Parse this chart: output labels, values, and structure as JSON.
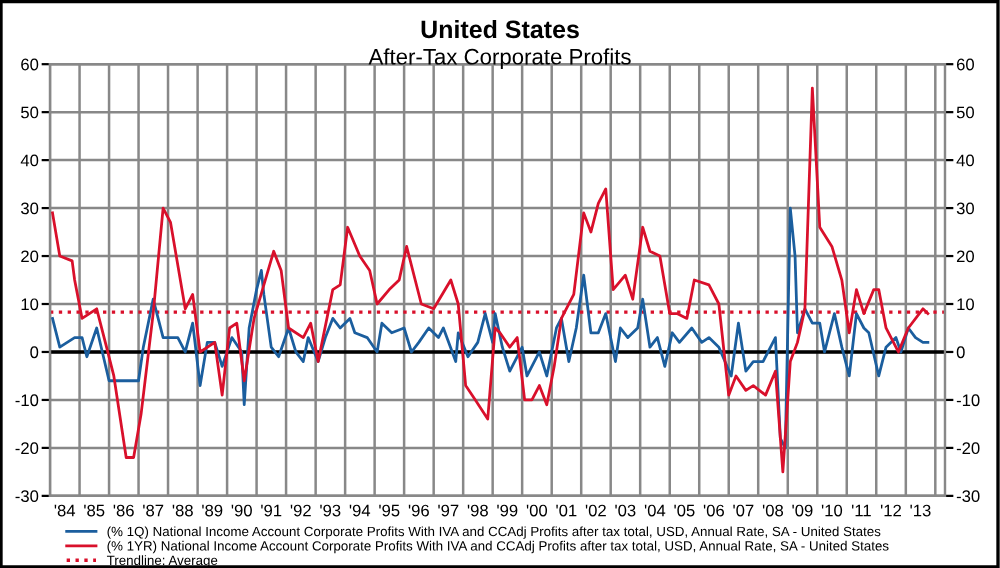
{
  "chart_data": {
    "type": "line",
    "title": "United States",
    "subtitle": "After-Tax Corporate Profits",
    "series": [
      {
        "name": "(% 1Q) National Income Account Corporate Profits With IVA and CCAdj Profits after tax total, USD, Annual Rate, SA - United States",
        "color": "#1b5e9e",
        "x": [
          "1984-02",
          "1984-05",
          "1984-11",
          "1985-02",
          "1985-04",
          "1985-08",
          "1986-01",
          "1986-03",
          "1986-10",
          "1987-01",
          "1987-03",
          "1987-07",
          "1987-11",
          "1988-05",
          "1988-08",
          "1988-11",
          "1989-02",
          "1989-05",
          "1989-08",
          "1989-11",
          "1990-03",
          "1990-07",
          "1990-08",
          "1990-10",
          "1991-01",
          "1991-03",
          "1991-04",
          "1991-07",
          "1991-10",
          "1992-02",
          "1992-05",
          "1992-08",
          "1992-10",
          "1993-02",
          "1993-05",
          "1993-08",
          "1993-11",
          "1994-03",
          "1994-05",
          "1994-10",
          "1995-02",
          "1995-04",
          "1995-08",
          "1996-01",
          "1996-04",
          "1996-07",
          "1996-11",
          "1997-03",
          "1997-05",
          "1997-10",
          "1997-11",
          "1998-03",
          "1998-07",
          "1998-10",
          "1999-01",
          "1999-02",
          "1999-05",
          "1999-08",
          "2000-01",
          "2000-03",
          "2000-08",
          "2000-11",
          "2001-03",
          "2001-05",
          "2001-08",
          "2001-11",
          "2002-02",
          "2002-05",
          "2002-08",
          "2002-11",
          "2003-03",
          "2003-05",
          "2003-08",
          "2003-12",
          "2004-02",
          "2004-05",
          "2004-08",
          "2004-11",
          "2005-02",
          "2005-05",
          "2005-10",
          "2006-02",
          "2006-05",
          "2006-09",
          "2007-02",
          "2007-05",
          "2007-08",
          "2007-11",
          "2008-03",
          "2008-08",
          "2008-10",
          "2008-12",
          "2009-02",
          "2009-04",
          "2009-05",
          "2009-08",
          "2009-11",
          "2010-02",
          "2010-04",
          "2010-08",
          "2010-11",
          "2011-02",
          "2011-05",
          "2011-08",
          "2011-10",
          "2012-02",
          "2012-05",
          "2012-09",
          "2012-11",
          "2013-02",
          "2013-05",
          "2013-08",
          "2013-10"
        ],
        "values": [
          7,
          1,
          3,
          3,
          -1,
          5,
          -6,
          -6,
          -6,
          -6,
          1,
          11,
          3,
          3,
          0,
          6,
          -7,
          2,
          2,
          -3,
          3,
          0,
          -11,
          5,
          13,
          17,
          12,
          1,
          -1,
          5,
          0,
          -2,
          3,
          -2,
          3,
          7,
          5,
          7,
          4,
          3,
          0,
          6,
          4,
          5,
          0,
          2,
          5,
          3,
          5,
          -2,
          4,
          -1,
          2,
          8,
          2,
          8,
          1,
          -4,
          1,
          -5,
          0,
          -5,
          5,
          7,
          -2,
          5,
          16,
          4,
          4,
          8,
          -2,
          5,
          3,
          5,
          11,
          1,
          3,
          -3,
          4,
          2,
          5,
          2,
          3,
          1,
          -5,
          6,
          -4,
          -2,
          -2,
          3,
          -18,
          -20,
          30,
          20,
          4,
          9,
          6,
          6,
          0,
          8,
          1,
          -5,
          8,
          5,
          4,
          -5,
          1,
          3,
          0,
          5,
          3,
          2,
          2
        ]
      },
      {
        "name": "(% 1YR) National Income Account Corporate Profits With IVA and CCAdj Profits after tax total, USD, Annual Rate, SA - United States",
        "color": "#d9102b",
        "x": [
          "1984-02",
          "1984-05",
          "1984-10",
          "1984-11",
          "1985-02",
          "1985-08",
          "1985-12",
          "1986-03",
          "1986-08",
          "1986-11",
          "1987-02",
          "1987-07",
          "1987-11",
          "1988-02",
          "1988-08",
          "1988-11",
          "1989-02",
          "1989-08",
          "1989-11",
          "1990-02",
          "1990-05",
          "1990-08",
          "1990-12",
          "1991-08",
          "1991-11",
          "1992-02",
          "1992-08",
          "1992-11",
          "1993-02",
          "1993-08",
          "1993-11",
          "1994-02",
          "1994-07",
          "1994-11",
          "1995-02",
          "1995-07",
          "1995-11",
          "1996-02",
          "1996-08",
          "1997-01",
          "1997-08",
          "1997-11",
          "1998-02",
          "1998-06",
          "1998-11",
          "1999-02",
          "1999-04",
          "1999-08",
          "1999-11",
          "2000-02",
          "2000-05",
          "2000-08",
          "2000-11",
          "2001-02",
          "2001-05",
          "2001-10",
          "2002-02",
          "2002-05",
          "2002-08",
          "2002-11",
          "2003-02",
          "2003-07",
          "2003-10",
          "2004-02",
          "2004-05",
          "2004-09",
          "2005-01",
          "2005-04",
          "2005-08",
          "2005-11",
          "2006-05",
          "2006-09",
          "2007-01",
          "2007-04",
          "2007-08",
          "2007-11",
          "2008-04",
          "2008-08",
          "2008-11",
          "2009-02",
          "2009-05",
          "2009-08",
          "2009-11",
          "2010-02",
          "2010-07",
          "2010-11",
          "2011-02",
          "2011-05",
          "2011-08",
          "2011-12",
          "2012-02",
          "2012-05",
          "2012-10",
          "2013-02",
          "2013-08",
          "2013-10"
        ],
        "values": [
          29,
          20,
          19,
          15,
          7,
          9,
          1,
          -5,
          -22,
          -22,
          -13,
          8,
          30,
          27,
          9,
          12,
          0,
          2,
          -9,
          5,
          6,
          -6,
          7,
          21,
          17,
          5,
          3,
          6,
          -2,
          13,
          14,
          26,
          20,
          17,
          10,
          13,
          15,
          22,
          10,
          9,
          15,
          10,
          -7,
          -10,
          -14,
          5,
          4,
          1,
          3,
          -10,
          -10,
          -7,
          -11,
          -3,
          7,
          12,
          29,
          25,
          31,
          34,
          13,
          16,
          11,
          26,
          21,
          20,
          8,
          8,
          7,
          15,
          14,
          10,
          -9,
          -5,
          -8,
          -7,
          -9,
          -4,
          -25,
          -2,
          2,
          9,
          55,
          26,
          22,
          15,
          4,
          13,
          8,
          13,
          13,
          5,
          0,
          5,
          9,
          8
        ]
      }
    ],
    "ref_lines": [
      {
        "axis": "y",
        "value": 0,
        "color": "#000000",
        "line_style": "solid"
      },
      {
        "axis": "y",
        "value": 8.3,
        "label": "Trendline: Average",
        "color": "#d9102b",
        "line_style": "dotted"
      }
    ],
    "xlim": [
      "1984-01",
      "2014-05"
    ],
    "xticks": [
      {
        "value": "1984",
        "label": null
      },
      {
        "value": "1985",
        "label": null
      },
      {
        "value": "1986",
        "label": null
      },
      {
        "value": "1987",
        "label": null
      },
      {
        "value": "1988",
        "label": null
      },
      {
        "value": "1989",
        "label": null
      },
      {
        "value": "1990",
        "label": null
      },
      {
        "value": "1991",
        "label": null
      },
      {
        "value": "1992",
        "label": null
      },
      {
        "value": "1993",
        "label": null
      },
      {
        "value": "1994",
        "label": null
      },
      {
        "value": "1995",
        "label": null
      },
      {
        "value": "1996",
        "label": null
      },
      {
        "value": "1997",
        "label": null
      },
      {
        "value": "1998",
        "label": null
      },
      {
        "value": "1999",
        "label": null
      },
      {
        "value": "2000",
        "label": null
      },
      {
        "value": "2001",
        "label": null
      },
      {
        "value": "2002",
        "label": null
      },
      {
        "value": "2003",
        "label": null
      },
      {
        "value": "2004",
        "label": null
      },
      {
        "value": "2005",
        "label": null
      },
      {
        "value": "2006",
        "label": null
      },
      {
        "value": "2007",
        "label": null
      },
      {
        "value": "2008",
        "label": null
      },
      {
        "value": "2009",
        "label": null
      },
      {
        "value": "2010",
        "label": null
      },
      {
        "value": "2011",
        "label": null
      },
      {
        "value": "2012",
        "label": null
      },
      {
        "value": "2013",
        "label": null
      },
      {
        "value": "2014",
        "label": null
      },
      {
        "value": "1984-07",
        "label": "'84"
      },
      {
        "value": "1985-07",
        "label": "'85"
      },
      {
        "value": "1986-07",
        "label": "'86"
      },
      {
        "value": "1987-07",
        "label": "'87"
      },
      {
        "value": "1988-07",
        "label": "'88"
      },
      {
        "value": "1989-07",
        "label": "'89"
      },
      {
        "value": "1990-07",
        "label": "'90"
      },
      {
        "value": "1991-07",
        "label": "'91"
      },
      {
        "value": "1992-07",
        "label": "'92"
      },
      {
        "value": "1993-07",
        "label": "'93"
      },
      {
        "value": "1994-07",
        "label": "'94"
      },
      {
        "value": "1995-07",
        "label": "'95"
      },
      {
        "value": "1996-07",
        "label": "'96"
      },
      {
        "value": "1997-07",
        "label": "'97"
      },
      {
        "value": "1998-07",
        "label": "'98"
      },
      {
        "value": "1999-07",
        "label": "'99"
      },
      {
        "value": "2000-07",
        "label": "'00"
      },
      {
        "value": "2001-07",
        "label": "'01"
      },
      {
        "value": "2002-07",
        "label": "'02"
      },
      {
        "value": "2003-07",
        "label": "'03"
      },
      {
        "value": "2004-07",
        "label": "'04"
      },
      {
        "value": "2005-07",
        "label": "'05"
      },
      {
        "value": "2006-07",
        "label": "'06"
      },
      {
        "value": "2007-07",
        "label": "'07"
      },
      {
        "value": "2008-07",
        "label": "'08"
      },
      {
        "value": "2009-07",
        "label": "'09"
      },
      {
        "value": "2010-07",
        "label": "'10"
      },
      {
        "value": "2011-07",
        "label": "'11"
      },
      {
        "value": "2012-07",
        "label": "'12"
      },
      {
        "value": "2013-07",
        "label": "'13"
      }
    ],
    "ylim": [
      -30,
      60
    ],
    "yticks": [
      -30,
      -20,
      -10,
      0,
      10,
      20,
      30,
      40,
      50,
      60
    ],
    "y2lim": [
      -30,
      60
    ],
    "y2ticks": [
      -30,
      -20,
      -10,
      0,
      10,
      20,
      30,
      40,
      50,
      60
    ],
    "grid": true,
    "legend": "bottom",
    "line_style": "solid",
    "marker": "none"
  }
}
